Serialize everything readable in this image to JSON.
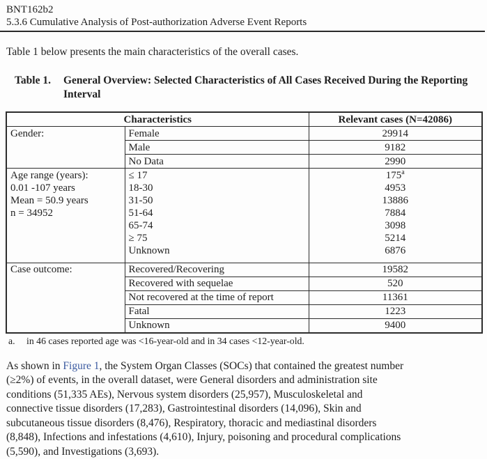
{
  "header": {
    "doc_id": "BNT162b2",
    "section": "5.3.6 Cumulative Analysis of Post-authorization Adverse Event Reports"
  },
  "intro": "Table 1 below presents the main characteristics of the overall cases.",
  "table_caption": {
    "label": "Table 1.",
    "text": "General Overview: Selected Characteristics of All Cases Received During the Reporting Interval"
  },
  "table": {
    "col_characteristics": "Characteristics",
    "col_relevant_cases": "Relevant cases (N=42086)",
    "gender": {
      "label": "Gender:",
      "rows": [
        {
          "label": "Female",
          "value": "29914"
        },
        {
          "label": "Male",
          "value": "9182"
        },
        {
          "label": "No Data",
          "value": "2990"
        }
      ]
    },
    "age": {
      "label_lines": [
        "Age range (years):",
        "0.01 -107 years",
        "Mean = 50.9 years",
        "n = 34952"
      ],
      "rows": [
        {
          "label": "≤ 17",
          "value": "175",
          "sup": "a"
        },
        {
          "label": "18-30",
          "value": "4953"
        },
        {
          "label": "31-50",
          "value": "13886"
        },
        {
          "label": "51-64",
          "value": "7884"
        },
        {
          "label": "65-74",
          "value": "3098"
        },
        {
          "label": "≥ 75",
          "value": "5214"
        },
        {
          "label": "Unknown",
          "value": "6876"
        }
      ]
    },
    "outcome": {
      "label": "Case outcome:",
      "rows": [
        {
          "label": "Recovered/Recovering",
          "value": "19582"
        },
        {
          "label": "Recovered with sequelae",
          "value": "520"
        },
        {
          "label": "Not recovered at the time of report",
          "value": "11361"
        },
        {
          "label": "Fatal",
          "value": "1223"
        },
        {
          "label": "Unknown",
          "value": "9400"
        }
      ]
    }
  },
  "table_footnote": {
    "marker": "a.",
    "text": "in 46 cases reported age was <16-year-old and in 34 cases <12-year-old."
  },
  "paragraph": {
    "line1_before": "As shown in ",
    "link_text": "Figure 1",
    "line1_after": ", the System Organ Classes (SOCs) that contained the greatest number",
    "lines": [
      "(≥2%) of events, in the overall dataset, were General disorders and administration site",
      "conditions (51,335 AEs), Nervous system disorders (25,957), Musculoskeletal and",
      "connective tissue disorders (17,283), Gastrointestinal disorders (14,096), Skin and",
      "subcutaneous tissue disorders (8,476), Respiratory, thoracic and mediastinal disorders",
      "(8,848), Infections and infestations (4,610), Injury, poisoning and procedural complications",
      "(5,590), and Investigations (3,693)."
    ]
  },
  "colors": {
    "link": "#3b5aa0",
    "text": "#1f1f1f",
    "border": "#2c2c2c"
  }
}
